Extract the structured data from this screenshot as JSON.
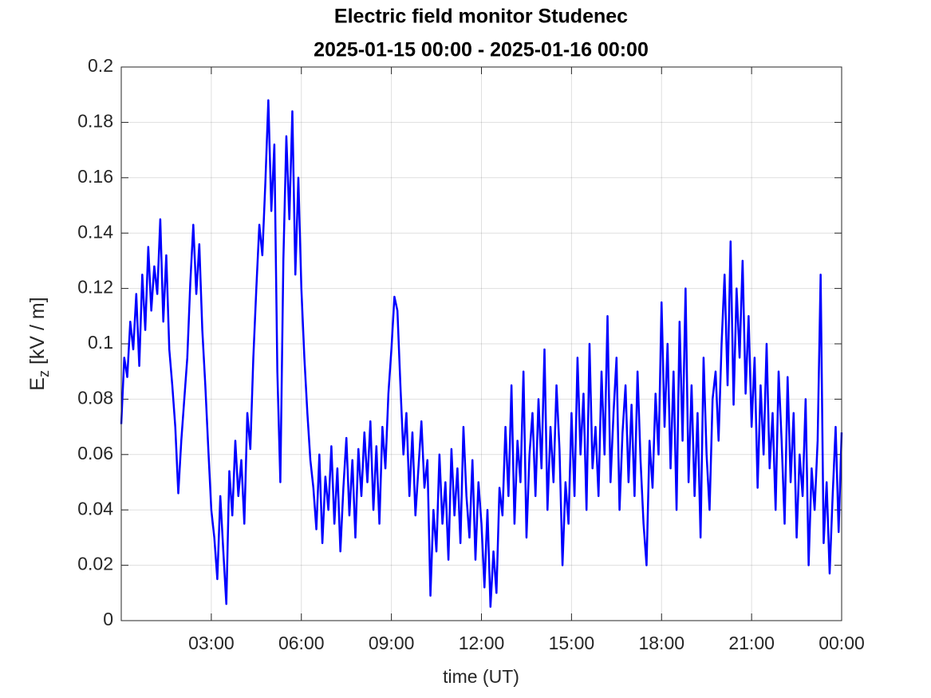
{
  "chart_data": {
    "type": "line",
    "title": "Electric field monitor Studenec",
    "subtitle": "2025-01-15 00:00 - 2025-01-16 00:00",
    "xlabel": "time (UT)",
    "ylabel": [
      "E",
      "z",
      " [kV / m]"
    ],
    "grid": true,
    "xlim": [
      0,
      24
    ],
    "xticks": [
      {
        "value": 3,
        "label": "03:00"
      },
      {
        "value": 6,
        "label": "06:00"
      },
      {
        "value": 9,
        "label": "09:00"
      },
      {
        "value": 12,
        "label": "12:00"
      },
      {
        "value": 15,
        "label": "15:00"
      },
      {
        "value": 18,
        "label": "18:00"
      },
      {
        "value": 21,
        "label": "21:00"
      },
      {
        "value": 24,
        "label": "00:00"
      }
    ],
    "ylim": [
      0,
      0.2
    ],
    "yticks": [
      0,
      0.02,
      0.04,
      0.06,
      0.08,
      0.1,
      0.12,
      0.14,
      0.16,
      0.18,
      0.2
    ],
    "x": [
      0,
      0.1,
      0.2,
      0.3,
      0.4,
      0.5,
      0.6,
      0.7,
      0.8,
      0.9,
      1,
      1.1,
      1.2,
      1.3,
      1.4,
      1.5,
      1.6,
      1.7,
      1.8,
      1.9,
      2,
      2.1,
      2.2,
      2.3,
      2.4,
      2.5,
      2.6,
      2.7,
      2.8,
      2.9,
      3,
      3.1,
      3.2,
      3.3,
      3.4,
      3.5,
      3.6,
      3.7,
      3.8,
      3.9,
      4,
      4.1,
      4.2,
      4.3,
      4.4,
      4.5,
      4.6,
      4.7,
      4.8,
      4.9,
      5,
      5.1,
      5.2,
      5.3,
      5.4,
      5.5,
      5.6,
      5.7,
      5.8,
      5.9,
      6,
      6.1,
      6.2,
      6.3,
      6.4,
      6.5,
      6.6,
      6.7,
      6.8,
      6.9,
      7,
      7.1,
      7.2,
      7.3,
      7.4,
      7.5,
      7.6,
      7.7,
      7.8,
      7.9,
      8,
      8.1,
      8.2,
      8.3,
      8.4,
      8.5,
      8.6,
      8.7,
      8.8,
      8.9,
      9,
      9.1,
      9.2,
      9.3,
      9.4,
      9.5,
      9.6,
      9.7,
      9.8,
      9.9,
      10,
      10.1,
      10.2,
      10.3,
      10.4,
      10.5,
      10.6,
      10.7,
      10.8,
      10.9,
      11,
      11.1,
      11.2,
      11.3,
      11.4,
      11.5,
      11.6,
      11.7,
      11.8,
      11.9,
      12,
      12.1,
      12.2,
      12.3,
      12.4,
      12.5,
      12.6,
      12.7,
      12.8,
      12.9,
      13,
      13.1,
      13.2,
      13.3,
      13.4,
      13.5,
      13.6,
      13.7,
      13.8,
      13.9,
      14,
      14.1,
      14.2,
      14.3,
      14.4,
      14.5,
      14.6,
      14.7,
      14.8,
      14.9,
      15,
      15.1,
      15.2,
      15.3,
      15.4,
      15.5,
      15.6,
      15.7,
      15.8,
      15.9,
      16,
      16.1,
      16.2,
      16.3,
      16.4,
      16.5,
      16.6,
      16.7,
      16.8,
      16.9,
      17,
      17.1,
      17.2,
      17.3,
      17.4,
      17.5,
      17.6,
      17.7,
      17.8,
      17.9,
      18,
      18.1,
      18.2,
      18.3,
      18.4,
      18.5,
      18.6,
      18.7,
      18.8,
      18.9,
      19,
      19.1,
      19.2,
      19.3,
      19.4,
      19.5,
      19.6,
      19.7,
      19.8,
      19.9,
      20,
      20.1,
      20.2,
      20.3,
      20.4,
      20.5,
      20.6,
      20.7,
      20.8,
      20.9,
      21,
      21.1,
      21.2,
      21.3,
      21.4,
      21.5,
      21.6,
      21.7,
      21.8,
      21.9,
      22,
      22.1,
      22.2,
      22.3,
      22.4,
      22.5,
      22.6,
      22.7,
      22.8,
      22.9,
      23,
      23.1,
      23.2,
      23.3,
      23.4,
      23.5,
      23.6,
      23.7,
      23.8,
      23.9,
      24
    ],
    "series": [
      {
        "color": "#0000ff",
        "values": [
          0.071,
          0.095,
          0.088,
          0.108,
          0.098,
          0.118,
          0.092,
          0.125,
          0.105,
          0.135,
          0.112,
          0.128,
          0.118,
          0.145,
          0.108,
          0.132,
          0.098,
          0.085,
          0.07,
          0.046,
          0.065,
          0.08,
          0.095,
          0.122,
          0.143,
          0.118,
          0.136,
          0.105,
          0.085,
          0.062,
          0.04,
          0.03,
          0.015,
          0.045,
          0.025,
          0.006,
          0.054,
          0.038,
          0.065,
          0.045,
          0.058,
          0.035,
          0.075,
          0.062,
          0.095,
          0.12,
          0.143,
          0.132,
          0.158,
          0.188,
          0.148,
          0.172,
          0.09,
          0.05,
          0.13,
          0.175,
          0.145,
          0.184,
          0.125,
          0.16,
          0.12,
          0.095,
          0.075,
          0.058,
          0.048,
          0.033,
          0.06,
          0.028,
          0.052,
          0.04,
          0.063,
          0.035,
          0.055,
          0.025,
          0.048,
          0.066,
          0.038,
          0.058,
          0.03,
          0.062,
          0.045,
          0.068,
          0.05,
          0.072,
          0.04,
          0.063,
          0.035,
          0.07,
          0.055,
          0.082,
          0.098,
          0.117,
          0.112,
          0.085,
          0.06,
          0.075,
          0.045,
          0.068,
          0.038,
          0.055,
          0.072,
          0.048,
          0.058,
          0.009,
          0.04,
          0.025,
          0.06,
          0.035,
          0.05,
          0.022,
          0.062,
          0.038,
          0.055,
          0.028,
          0.07,
          0.045,
          0.03,
          0.058,
          0.022,
          0.05,
          0.035,
          0.012,
          0.04,
          0.005,
          0.025,
          0.01,
          0.048,
          0.038,
          0.07,
          0.045,
          0.085,
          0.035,
          0.065,
          0.05,
          0.09,
          0.03,
          0.06,
          0.075,
          0.045,
          0.08,
          0.055,
          0.098,
          0.04,
          0.07,
          0.05,
          0.085,
          0.062,
          0.02,
          0.05,
          0.035,
          0.075,
          0.045,
          0.095,
          0.06,
          0.082,
          0.04,
          0.1,
          0.055,
          0.07,
          0.045,
          0.09,
          0.06,
          0.11,
          0.05,
          0.075,
          0.095,
          0.04,
          0.068,
          0.085,
          0.05,
          0.078,
          0.045,
          0.09,
          0.058,
          0.035,
          0.02,
          0.065,
          0.048,
          0.082,
          0.06,
          0.115,
          0.07,
          0.1,
          0.055,
          0.09,
          0.04,
          0.108,
          0.065,
          0.12,
          0.05,
          0.085,
          0.045,
          0.075,
          0.03,
          0.095,
          0.06,
          0.04,
          0.08,
          0.09,
          0.065,
          0.1,
          0.125,
          0.085,
          0.137,
          0.078,
          0.12,
          0.095,
          0.13,
          0.082,
          0.11,
          0.07,
          0.095,
          0.048,
          0.085,
          0.06,
          0.1,
          0.055,
          0.075,
          0.04,
          0.09,
          0.065,
          0.035,
          0.088,
          0.05,
          0.075,
          0.03,
          0.06,
          0.045,
          0.08,
          0.02,
          0.055,
          0.04,
          0.065,
          0.125,
          0.028,
          0.05,
          0.017,
          0.045,
          0.07,
          0.032,
          0.068
        ]
      }
    ]
  }
}
